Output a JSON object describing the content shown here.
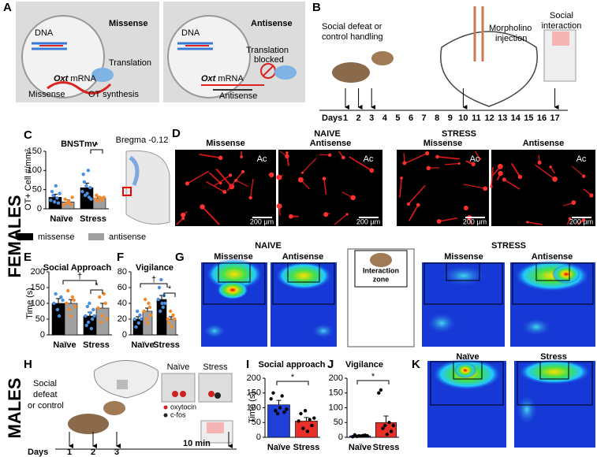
{
  "panels": {
    "labels": [
      "A",
      "B",
      "C",
      "D",
      "E",
      "F",
      "G",
      "H",
      "I",
      "J",
      "K"
    ],
    "sex": [
      "FEMALES",
      "MALES"
    ],
    "A": {
      "missense": {
        "title": "Missense",
        "dna": "DNA",
        "translation": "Translation",
        "gene": "Oxt",
        "mrna": "mRNA",
        "strand": "Missense",
        "synthesis": "OT synthesis"
      },
      "antisense": {
        "title": "Antisense",
        "dna": "DNA",
        "blocked": [
          "Translation",
          "blocked"
        ],
        "gene": "Oxt",
        "mrna": "mRNA",
        "strand": "Antisense"
      }
    },
    "B": {
      "step1": [
        "Social defeat or",
        "control handling"
      ],
      "step2": [
        "Morpholino",
        "injection"
      ],
      "step3": [
        "Social",
        "interaction"
      ],
      "days_label": "Days",
      "days": [
        "1",
        "2",
        "3",
        "4",
        "5",
        "6",
        "7",
        "8",
        "9",
        "10",
        "11",
        "12",
        "13",
        "14",
        "15",
        "16",
        "17"
      ]
    },
    "D": {
      "bregma": "Bregma -0.12",
      "groups": [
        "NAIVE",
        "STRESS"
      ],
      "images": [
        {
          "title": "Missense",
          "region": "Ac",
          "scale": "200 µm"
        },
        {
          "title": "Antisense",
          "region": "Ac",
          "scale": "200 µm"
        },
        {
          "title": "Missense",
          "region": "Ac",
          "scale": "200 µm"
        },
        {
          "title": "Antisense",
          "region": "Ac",
          "scale": "200 µm"
        }
      ]
    },
    "G": {
      "groups": [
        "NAIVE",
        "STRESS"
      ],
      "maps": [
        "Missense",
        "Antisense",
        "Missense",
        "Antisense"
      ],
      "zone": [
        "Interaction",
        "zone"
      ]
    },
    "H": {
      "step": [
        "Social",
        "defeat",
        "or control"
      ],
      "groups": [
        "Naïve",
        "Stress"
      ],
      "legend": [
        "oxytocin",
        "c-fos"
      ],
      "duration": "10 min",
      "days_label": "Days",
      "days": [
        "1",
        "2",
        "3"
      ]
    },
    "K": {
      "maps": [
        "Naïve",
        "Stress"
      ]
    }
  },
  "chart_data": [
    {
      "type": "bar",
      "title": "BNSTmv",
      "ylabel": "OT+ Cell #/mm²",
      "categories": [
        "Naïve",
        "Stress"
      ],
      "series": [
        {
          "name": "missense",
          "color": "#000000",
          "point_color": "#4a8fe0",
          "values": [
            30,
            55
          ],
          "errors": [
            8,
            12
          ],
          "points": [
            [
              22,
              45,
              35,
              18,
              60,
              28,
              15,
              40
            ],
            [
              45,
              90,
              70,
              35,
              60,
              40,
              100,
              30,
              55,
              25
            ]
          ]
        },
        {
          "name": "antisense",
          "color": "#a0a0a0",
          "point_color": "#f08a2c",
          "values": [
            18,
            27
          ],
          "errors": [
            5,
            3
          ],
          "points": [
            [
              10,
              25,
              15,
              20,
              12,
              30
            ],
            [
              25,
              35,
              20,
              30,
              28,
              22,
              30
            ]
          ]
        }
      ],
      "ylim": [
        0,
        150
      ],
      "yticks": [
        0,
        50,
        100,
        150
      ],
      "annotations": [
        "*"
      ]
    },
    {
      "type": "bar",
      "title": "Social Approach",
      "ylabel": "Time (s)",
      "categories": [
        "Naïve",
        "Stress"
      ],
      "series": [
        {
          "color": "#000000",
          "point_color": "#4a8fe0",
          "values": [
            100,
            60
          ],
          "errors": [
            15,
            12
          ],
          "points": [
            [
              100,
              130,
              80,
              60,
              120,
              110
            ],
            [
              60,
              30,
              90,
              40,
              100,
              70,
              20,
              50,
              80,
              60
            ]
          ]
        },
        {
          "color": "#a0a0a0",
          "point_color": "#f08a2c",
          "values": [
            100,
            85
          ],
          "errors": [
            12,
            15
          ],
          "points": [
            [
              100,
              140,
              80,
              60,
              120,
              110,
              90
            ],
            [
              85,
              120,
              40,
              60,
              130,
              100,
              50
            ]
          ]
        }
      ],
      "ylim": [
        0,
        200
      ],
      "yticks": [
        0,
        50,
        100,
        150,
        200
      ],
      "annotations": [
        "†",
        "*"
      ]
    },
    {
      "type": "bar",
      "title": "Vigilance",
      "categories": [
        "Naïve",
        "Stress"
      ],
      "series": [
        {
          "color": "#000000",
          "point_color": "#4a8fe0",
          "values": [
            20,
            45
          ],
          "errors": [
            3,
            5
          ],
          "points": [
            [
              20,
              10,
              30,
              15,
              25,
              20
            ],
            [
              45,
              60,
              30,
              70,
              40,
              35,
              50,
              40
            ]
          ]
        },
        {
          "color": "#a0a0a0",
          "point_color": "#f08a2c",
          "values": [
            30,
            20
          ],
          "errors": [
            4,
            3
          ],
          "points": [
            [
              30,
              45,
              20,
              15,
              40,
              35,
              25
            ],
            [
              20,
              15,
              30,
              10,
              25,
              20
            ]
          ]
        }
      ],
      "ylim": [
        0,
        80
      ],
      "yticks": [
        0,
        20,
        40,
        60,
        80
      ],
      "annotations": [
        "†",
        "*"
      ]
    },
    {
      "type": "bar",
      "title": "Social approach",
      "ylabel": "Time (s)",
      "categories": [
        "Naïve",
        "Stress"
      ],
      "series": [
        {
          "colors": [
            "#1f3fd6",
            "#e8302a"
          ],
          "point_color": "#000000",
          "values": [
            110,
            55
          ],
          "errors": [
            15,
            12
          ],
          "points": [
            [
              130,
              150,
              90,
              80,
              100,
              140,
              85,
              95
            ],
            [
              55,
              80,
              30,
              90,
              20,
              60,
              40,
              65
            ]
          ]
        }
      ],
      "ylim": [
        0,
        200
      ],
      "yticks": [
        0,
        50,
        100,
        150,
        200
      ],
      "annotations": [
        "*"
      ]
    },
    {
      "type": "bar",
      "title": "Vigilance",
      "categories": [
        "Naïve",
        "Stress"
      ],
      "series": [
        {
          "colors": [
            "#1f3fd6",
            "#e8302a"
          ],
          "point_color": "#000000",
          "values": [
            5,
            50
          ],
          "errors": [
            2,
            22
          ],
          "points": [
            [
              2,
              8,
              3,
              5,
              4,
              6,
              7,
              5
            ],
            [
              150,
              160,
              30,
              40,
              10,
              50,
              20,
              40
            ]
          ]
        }
      ],
      "ylim": [
        0,
        200
      ],
      "yticks": [
        0,
        50,
        100,
        150,
        200
      ],
      "annotations": [
        "*"
      ]
    }
  ]
}
